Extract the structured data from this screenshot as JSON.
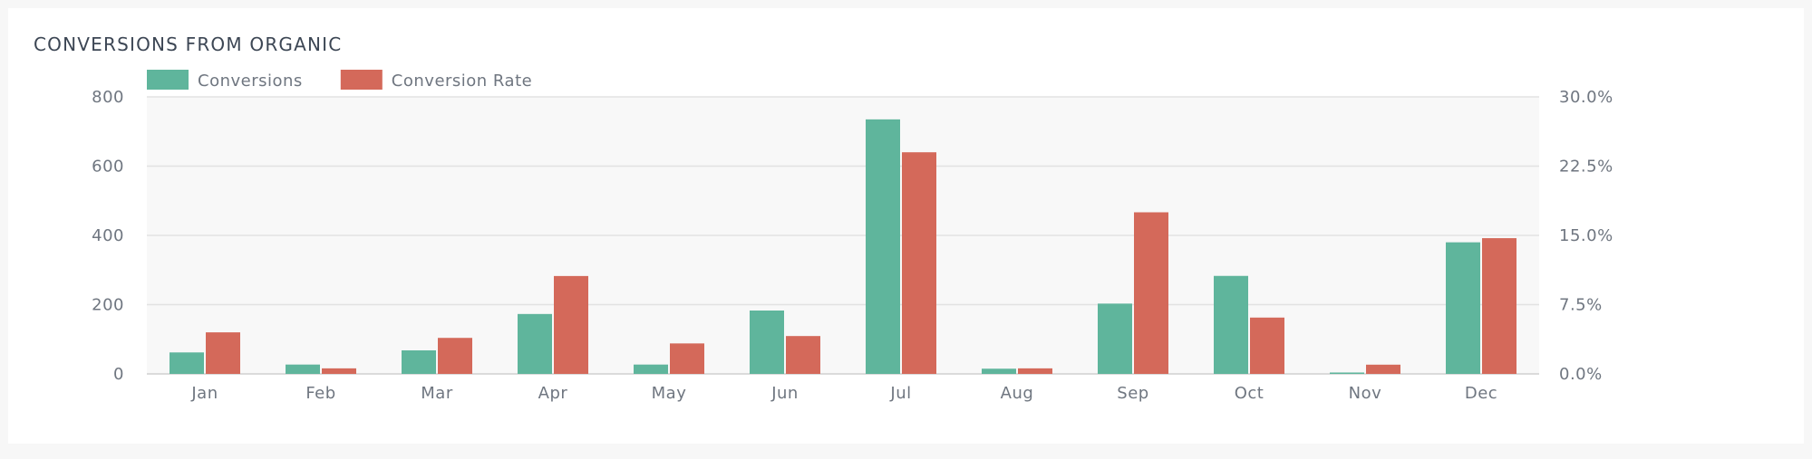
{
  "title": "CONVERSIONS FROM ORGANIC",
  "chart_data": {
    "type": "bar",
    "categories": [
      "Jan",
      "Feb",
      "Mar",
      "Apr",
      "May",
      "Jun",
      "Jul",
      "Aug",
      "Sep",
      "Oct",
      "Nov",
      "Dec"
    ],
    "series": [
      {
        "name": "Conversions",
        "axis": "left",
        "color": "#5fb59c",
        "values": [
          62,
          27,
          68,
          173,
          27,
          183,
          735,
          15,
          203,
          283,
          4,
          380
        ]
      },
      {
        "name": "Conversion Rate",
        "axis": "right",
        "color": "#d4695a",
        "values": [
          4.5,
          0.6,
          3.9,
          10.6,
          3.3,
          4.1,
          24.0,
          0.6,
          17.5,
          6.1,
          1.0,
          14.7
        ]
      }
    ],
    "y_left": {
      "ylim": [
        0,
        800
      ],
      "ticks": [
        "0",
        "200",
        "400",
        "600",
        "800"
      ]
    },
    "y_right": {
      "ylim": [
        0,
        30
      ],
      "ticks": [
        "0.0%",
        "7.5%",
        "15.0%",
        "22.5%",
        "30.0%"
      ]
    },
    "legend": "top-left",
    "grid": true,
    "colors": {
      "plot_background": "#f8f8f8",
      "gridline": "#e2e2e2",
      "axis_line": "#cfcfcf"
    }
  }
}
